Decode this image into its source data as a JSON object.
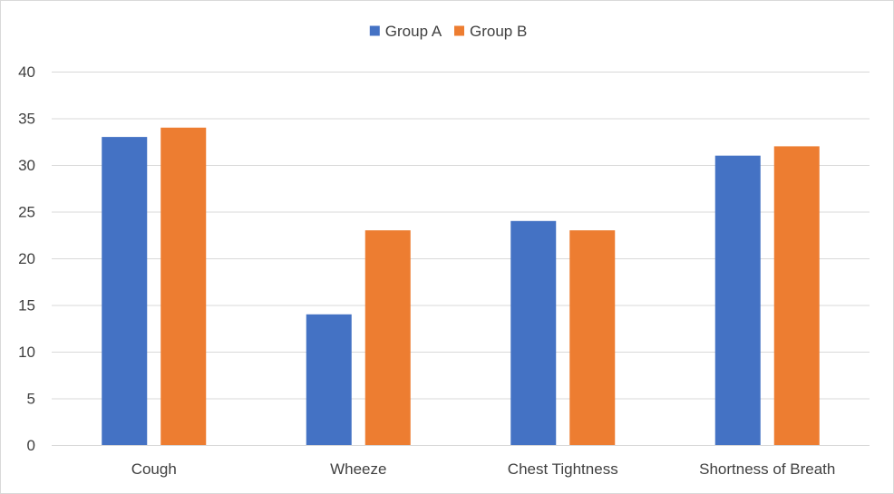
{
  "chart_data": {
    "type": "bar",
    "title": "",
    "xlabel": "",
    "ylabel": "",
    "categories": [
      "Cough",
      "Wheeze",
      "Chest Tightness",
      "Shortness of Breath"
    ],
    "series": [
      {
        "name": "Group A",
        "color": "#4472C4",
        "values": [
          33,
          14,
          24,
          31
        ]
      },
      {
        "name": "Group B",
        "color": "#ED7D31",
        "values": [
          34,
          23,
          23,
          32
        ]
      }
    ],
    "ylim": [
      0,
      40
    ],
    "yticks": [
      0,
      5,
      10,
      15,
      20,
      25,
      30,
      35,
      40
    ],
    "grid": true,
    "legend_position": "top-center",
    "gridline_color": "#d9d9d9"
  }
}
